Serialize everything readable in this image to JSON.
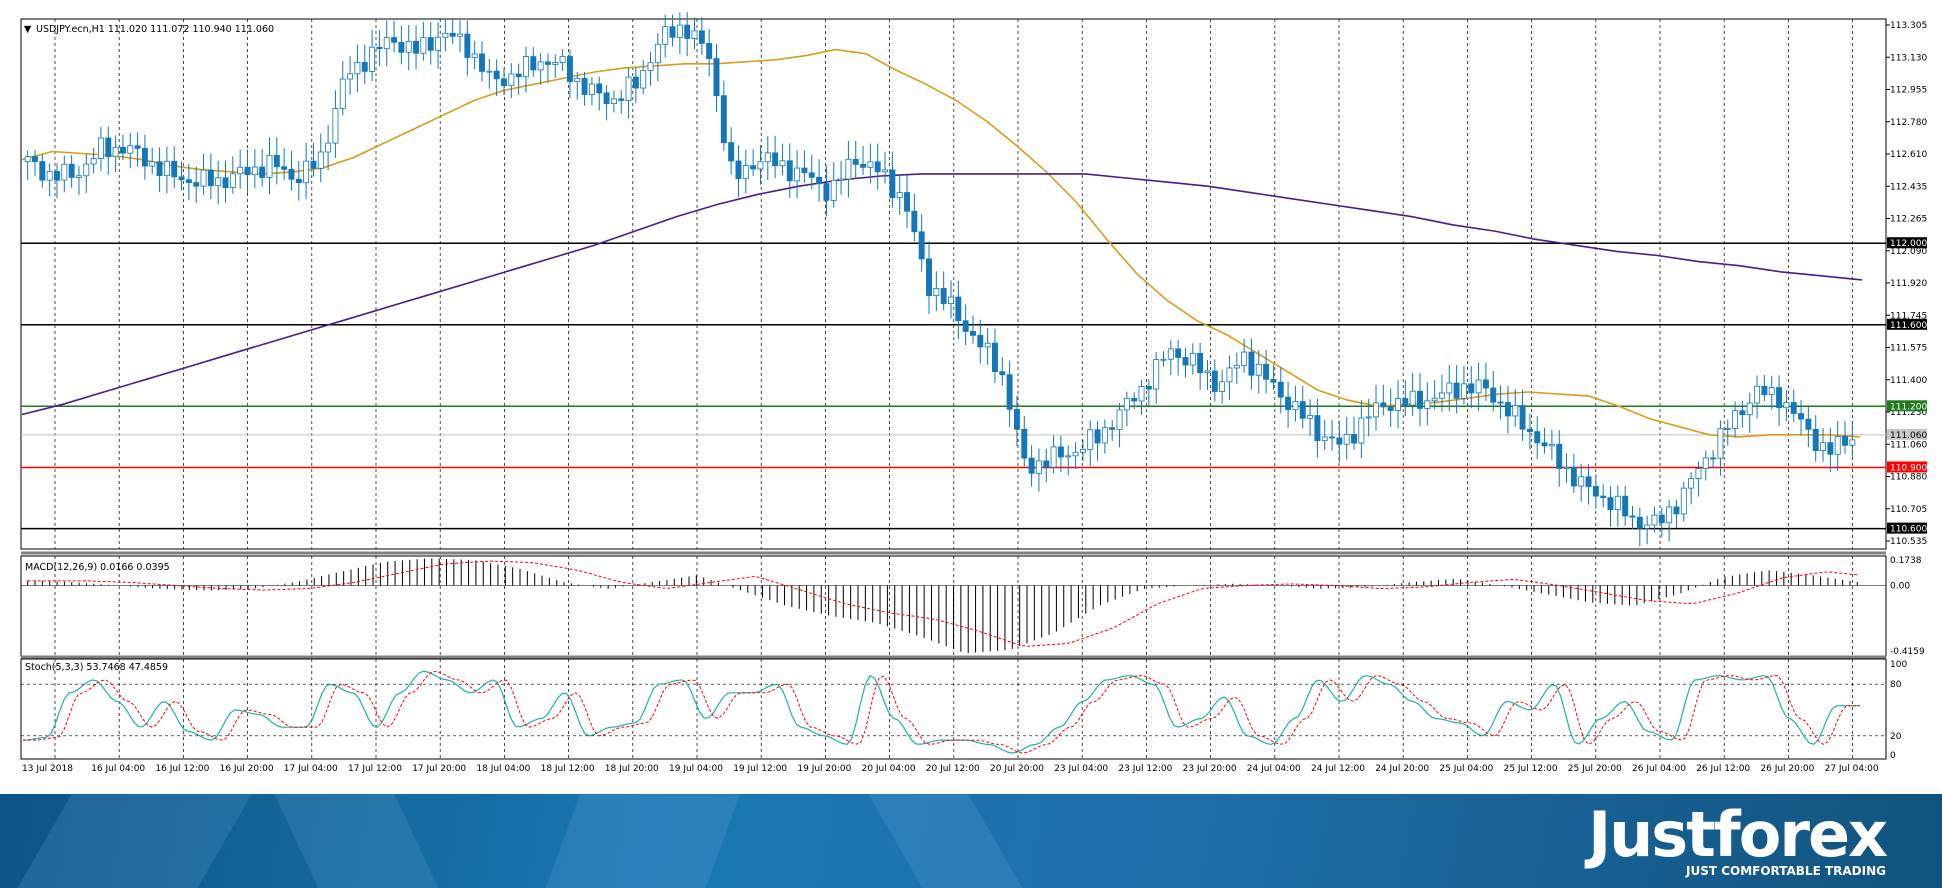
{
  "chart_data": [
    {
      "type": "candlestick",
      "panel": "price",
      "header": "USDJPY.ecn,H1  111.020 111.072 110.940 111.060",
      "header_triangle": "▼",
      "ylim": [
        110.5,
        113.1
      ],
      "y_ticks": [
        "113.305",
        "113.130",
        "112.955",
        "112.780",
        "112.610",
        "112.435",
        "112.265",
        "112.090",
        "111.920",
        "111.745",
        "111.575",
        "111.400",
        "111.230",
        "111.060",
        "110.880",
        "110.705",
        "110.535"
      ],
      "x_ticks": [
        "13 Jul 2018",
        "16 Jul 04:00",
        "16 Jul 12:00",
        "16 Jul 20:00",
        "17 Jul 04:00",
        "17 Jul 12:00",
        "17 Jul 20:00",
        "18 Jul 04:00",
        "18 Jul 12:00",
        "18 Jul 20:00",
        "19 Jul 04:00",
        "19 Jul 12:00",
        "19 Jul 20:00",
        "20 Jul 04:00",
        "20 Jul 12:00",
        "20 Jul 20:00",
        "23 Jul 04:00",
        "23 Jul 12:00",
        "23 Jul 20:00",
        "24 Jul 04:00",
        "24 Jul 12:00",
        "24 Jul 20:00",
        "25 Jul 04:00",
        "25 Jul 12:00",
        "25 Jul 20:00",
        "26 Jul 04:00",
        "26 Jul 12:00",
        "26 Jul 20:00",
        "27 Jul 04:00"
      ],
      "close_anchors": [
        112.4,
        112.33,
        112.34,
        112.46,
        112.47,
        112.4,
        112.33,
        112.3,
        112.31,
        112.35,
        112.39,
        112.32,
        112.4,
        112.8,
        112.92,
        113.0,
        112.94,
        113.03,
        112.98,
        112.8,
        112.82,
        112.9,
        112.87,
        112.75,
        112.7,
        112.78,
        113.0,
        113.07,
        112.92,
        112.3,
        112.42,
        112.38,
        112.33,
        112.25,
        112.42,
        112.35,
        112.22,
        111.8,
        111.68,
        111.52,
        111.38,
        110.9,
        110.94,
        110.98,
        111.05,
        111.18,
        111.32,
        111.48,
        111.4,
        111.3,
        111.45,
        111.32,
        111.2,
        111.08,
        111.0,
        111.15,
        111.22,
        111.22,
        111.25,
        111.3,
        111.28,
        111.16,
        111.05,
        110.92,
        110.8,
        110.74,
        110.64,
        110.62,
        110.76,
        110.95,
        111.12,
        111.27,
        111.25,
        111.1,
        110.97,
        111.06
      ],
      "candle_color_up": "#ffffff",
      "candle_color_down": "#1477b8",
      "candle_outline": "#1477b8",
      "ma_fast": {
        "color": "#d99c1c",
        "values": [
          112.41,
          112.45,
          112.44,
          112.43,
          112.41,
          112.38,
          112.36,
          112.35,
          112.34,
          112.35,
          112.37,
          112.42,
          112.49,
          112.56,
          112.63,
          112.7,
          112.75,
          112.78,
          112.81,
          112.84,
          112.86,
          112.87,
          112.88,
          112.88,
          112.89,
          112.9,
          112.92,
          112.95,
          112.93,
          112.85,
          112.78,
          112.7,
          112.6,
          112.48,
          112.35,
          112.2,
          112.02,
          111.85,
          111.72,
          111.62,
          111.55,
          111.46,
          111.37,
          111.28,
          111.23,
          111.2,
          111.21,
          111.22,
          111.24,
          111.26,
          111.27,
          111.26,
          111.25,
          111.2,
          111.14,
          111.1,
          111.06,
          111.05,
          111.06,
          111.06,
          111.06,
          111.05
        ]
      },
      "ma_slow": {
        "color": "#4b1c8c",
        "values": [
          111.16,
          111.21,
          111.27,
          111.33,
          111.39,
          111.45,
          111.51,
          111.57,
          111.63,
          111.69,
          111.75,
          111.81,
          111.87,
          111.93,
          111.99,
          112.06,
          112.13,
          112.19,
          112.24,
          112.28,
          112.31,
          112.33,
          112.34,
          112.34,
          112.34,
          112.34,
          112.34,
          112.32,
          112.3,
          112.28,
          112.25,
          112.22,
          112.19,
          112.16,
          112.13,
          112.09,
          112.06,
          112.02,
          111.99,
          111.96,
          111.94,
          111.91,
          111.89,
          111.86,
          111.84,
          111.82
        ]
      },
      "levels": [
        {
          "value": 112.0,
          "label": "112.000",
          "color": "#000000",
          "tag_bg": "#000000",
          "tag_fg": "#ffffff"
        },
        {
          "value": 111.6,
          "label": "111.600",
          "color": "#000000",
          "tag_bg": "#000000",
          "tag_fg": "#ffffff"
        },
        {
          "value": 111.2,
          "label": "111.200",
          "color": "#1f7a1f",
          "tag_bg": "#1f7a1f",
          "tag_fg": "#ffffff"
        },
        {
          "value": 111.06,
          "label": "111.060",
          "color": "#c0c0c0",
          "tag_bg": "#c8c8c8",
          "tag_fg": "#000000"
        },
        {
          "value": 110.9,
          "label": "110.900",
          "color": "#ff0000",
          "tag_bg": "#ff0000",
          "tag_fg": "#ffffff"
        },
        {
          "value": 110.6,
          "label": "110.600",
          "color": "#000000",
          "tag_bg": "#000000",
          "tag_fg": "#ffffff"
        }
      ]
    },
    {
      "type": "histogram",
      "panel": "macd",
      "header": "MACD(12,26,9) 0.0166 0.0395",
      "ylim": [
        -0.4159,
        0.1738
      ],
      "y_ticks": [
        "0.1738",
        "0.00",
        "-0.4159"
      ],
      "hist_anchors": [
        0.03,
        0.02,
        0.0,
        -0.02,
        -0.03,
        -0.02,
        0.02,
        0.08,
        0.14,
        0.16,
        0.15,
        0.1,
        0.02,
        -0.02,
        0.02,
        0.06,
        -0.03,
        -0.12,
        -0.18,
        -0.22,
        -0.3,
        -0.4,
        -0.38,
        -0.28,
        -0.12,
        -0.02,
        0.0,
        0.01,
        0.0,
        -0.02,
        -0.01,
        0.02,
        0.04,
        0.0,
        -0.05,
        -0.1,
        -0.12,
        -0.05,
        0.05,
        0.09,
        0.06,
        0.02
      ],
      "signal_color": "#ff0000",
      "hist_color": "#000000"
    },
    {
      "type": "line",
      "panel": "stochastic",
      "header": "Stoch(5,3,3) 53.7468 47.4859",
      "ylim": [
        0,
        100
      ],
      "y_ticks": [
        "100",
        "80",
        "20",
        "0"
      ],
      "main_color": "#20b2aa",
      "signal_color": "#ff0000",
      "main_anchors": [
        15,
        18,
        70,
        85,
        60,
        30,
        60,
        25,
        15,
        50,
        45,
        30,
        30,
        80,
        70,
        30,
        70,
        95,
        85,
        70,
        85,
        30,
        40,
        70,
        20,
        30,
        35,
        80,
        85,
        40,
        70,
        70,
        80,
        30,
        20,
        10,
        90,
        40,
        10,
        15,
        15,
        10,
        0,
        10,
        30,
        60,
        85,
        90,
        80,
        30,
        40,
        65,
        20,
        10,
        40,
        85,
        60,
        90,
        80,
        60,
        40,
        35,
        20,
        60,
        50,
        80,
        10,
        40,
        60,
        25,
        15,
        85,
        90,
        85,
        90,
        40,
        10,
        55,
        55
      ]
    }
  ],
  "branding": {
    "logo_text": "Justforex",
    "tagline": "JUST COMFORTABLE TRADING"
  }
}
